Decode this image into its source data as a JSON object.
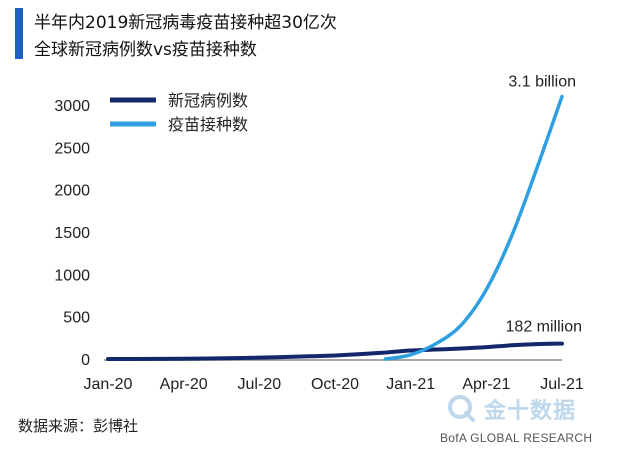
{
  "title_line_1": "半年内2019新冠病毒疫苗接种超30亿次",
  "title_line_2": "全球新冠病例数vs疫苗接种数",
  "source": "数据来源：彭博社",
  "watermark": "金十数据",
  "credit": "BofA GLOBAL RESEARCH",
  "colors": {
    "accent": "#1f5fc8",
    "cases": "#13286b",
    "vaccines": "#2e9fe0",
    "axis": "#888888"
  },
  "chart_data": {
    "type": "line",
    "title": "",
    "xlabel": "",
    "ylabel": "",
    "ylim": [
      0,
      3000
    ],
    "yticks": [
      0,
      500,
      1000,
      1500,
      2000,
      2500,
      3000
    ],
    "xticks": [
      "Jan-20",
      "Apr-20",
      "Jul-20",
      "Oct-20",
      "Jan-21",
      "Apr-21",
      "Jul-21"
    ],
    "x_range": [
      "2020-01",
      "2021-07"
    ],
    "legend_position": "top-left",
    "series": [
      {
        "name": "新冠病例数",
        "color": "#13286b",
        "x": [
          "2020-01",
          "2020-02",
          "2020-03",
          "2020-04",
          "2020-05",
          "2020-06",
          "2020-07",
          "2020-08",
          "2020-09",
          "2020-10",
          "2020-11",
          "2020-12",
          "2021-01",
          "2021-02",
          "2021-03",
          "2021-04",
          "2021-05",
          "2021-06",
          "2021-07"
        ],
        "values": [
          0,
          0,
          1,
          3,
          6,
          10,
          16,
          24,
          32,
          42,
          57,
          76,
          100,
          112,
          124,
          140,
          162,
          176,
          182
        ]
      },
      {
        "name": "疫苗接种数",
        "color": "#2e9fe0",
        "x": [
          "2020-12",
          "2021-01",
          "2021-02",
          "2021-03",
          "2021-04",
          "2021-05",
          "2021-06",
          "2021-07"
        ],
        "values": [
          0,
          50,
          180,
          400,
          820,
          1450,
          2250,
          3100
        ]
      }
    ],
    "annotations": [
      {
        "text": "3.1 billion",
        "series": "疫苗接种数"
      },
      {
        "text": "182 million",
        "series": "新冠病例数"
      }
    ]
  }
}
